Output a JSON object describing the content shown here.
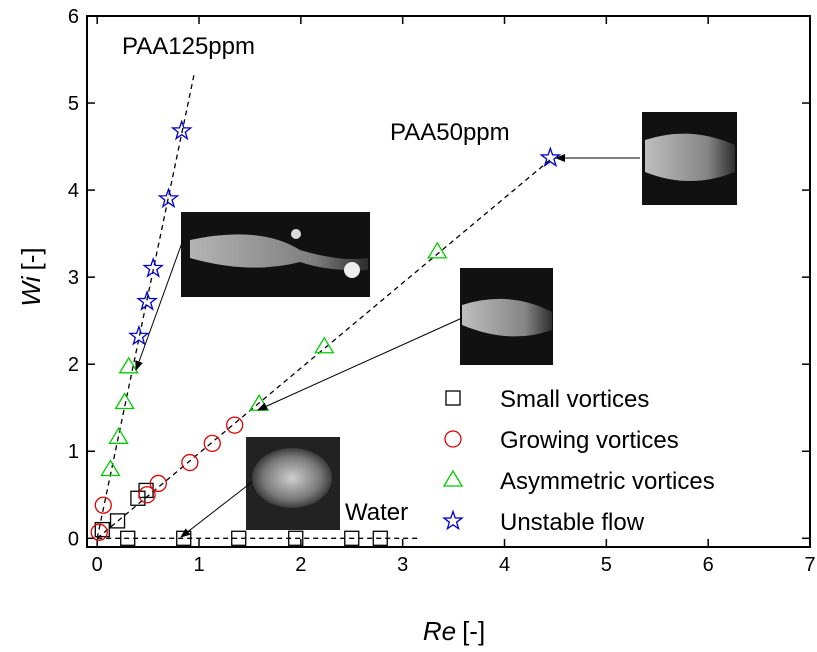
{
  "chart_data": {
    "type": "scatter",
    "x_label": "Re",
    "x_label_unit": "[-]",
    "y_label": "Wi",
    "y_label_unit": "[-]",
    "xlim": [
      -0.1,
      7
    ],
    "ylim": [
      -0.1,
      6
    ],
    "xticks": [
      0,
      1,
      2,
      3,
      4,
      5,
      6,
      7
    ],
    "yticks": [
      0,
      1,
      2,
      3,
      4,
      5,
      6
    ],
    "series": [
      {
        "name": "Small vortices",
        "marker": "square",
        "color": "#000000",
        "x": [
          0.05,
          0.2,
          0.4,
          0.48,
          0.3,
          0.85,
          1.39,
          1.95,
          2.5,
          2.78
        ],
        "y": [
          0.1,
          0.2,
          0.46,
          0.55,
          0,
          0,
          0,
          0,
          0,
          0
        ]
      },
      {
        "name": "Growing vortices",
        "marker": "circle",
        "color": "#e00000",
        "x": [
          0.02,
          0.06,
          0.49,
          0.6,
          0.91,
          1.13,
          1.35
        ],
        "y": [
          0.07,
          0.38,
          0.5,
          0.63,
          0.87,
          1.09,
          1.3
        ]
      },
      {
        "name": "Asymmetric vortices",
        "marker": "triangle",
        "color": "#00cc00",
        "x": [
          0.13,
          0.21,
          0.27,
          0.31,
          1.59,
          2.23,
          3.34
        ],
        "y": [
          0.79,
          1.16,
          1.56,
          1.97,
          1.54,
          2.2,
          3.29
        ]
      },
      {
        "name": "Unstable flow",
        "marker": "star",
        "color": "#0000cc",
        "x": [
          0.41,
          0.49,
          0.55,
          0.7,
          0.83,
          4.45
        ],
        "y": [
          2.32,
          2.72,
          3.1,
          3.9,
          4.68,
          4.37
        ]
      }
    ],
    "lines": [
      {
        "x": [
          0,
          0.95
        ],
        "y": [
          0,
          5.32
        ]
      },
      {
        "x": [
          0,
          4.45
        ],
        "y": [
          0,
          4.35
        ]
      },
      {
        "x": [
          0,
          3.17
        ],
        "y": [
          0,
          0
        ]
      }
    ],
    "annotations": [
      "PAA125ppm",
      "PAA50ppm",
      "Water"
    ]
  }
}
